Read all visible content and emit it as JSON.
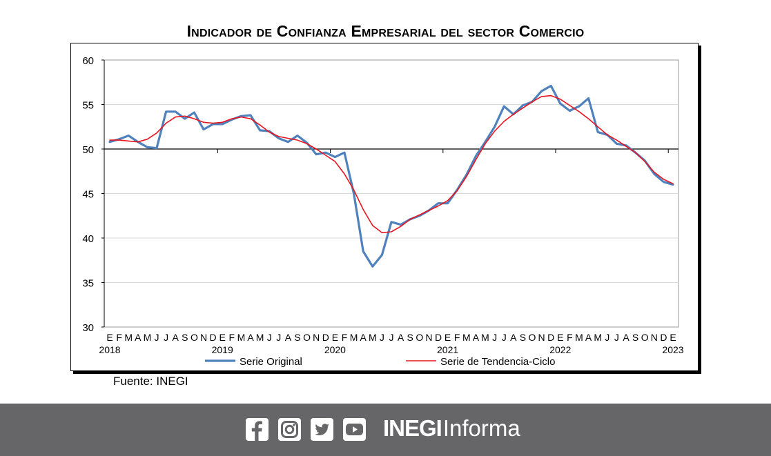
{
  "source": "Fuente: INEGI",
  "footer": {
    "brand_bold": "INEGI",
    "brand_light": "Informa",
    "social_icons": [
      "facebook-icon",
      "instagram-icon",
      "twitter-icon",
      "youtube-icon"
    ],
    "bar_color": "#666669"
  },
  "chart_data": {
    "type": "line",
    "title": "Indicador de Confianza Empresarial del sector Comercio",
    "ylim": [
      30,
      60
    ],
    "yticks": [
      30,
      35,
      40,
      45,
      50,
      55,
      60
    ],
    "reference_line": 50,
    "grid": "horizontal",
    "legend_position": "bottom",
    "month_labels": [
      "E",
      "F",
      "M",
      "A",
      "M",
      "J",
      "J",
      "A",
      "S",
      "O",
      "N",
      "D",
      "E",
      "F",
      "M",
      "A",
      "M",
      "J",
      "J",
      "A",
      "S",
      "O",
      "N",
      "D",
      "E",
      "F",
      "M",
      "A",
      "M",
      "J",
      "J",
      "A",
      "S",
      "O",
      "N",
      "D",
      "E",
      "F",
      "M",
      "A",
      "M",
      "J",
      "J",
      "A",
      "S",
      "O",
      "N",
      "D",
      "E",
      "F",
      "M",
      "A",
      "M",
      "J",
      "J",
      "A",
      "S",
      "O",
      "N",
      "D",
      "E"
    ],
    "year_labels": [
      {
        "index": 0,
        "label": "2018"
      },
      {
        "index": 12,
        "label": "2019"
      },
      {
        "index": 24,
        "label": "2020"
      },
      {
        "index": 36,
        "label": "2021"
      },
      {
        "index": 48,
        "label": "2022"
      },
      {
        "index": 60,
        "label": "2023"
      }
    ],
    "series": [
      {
        "name": "Serie Original",
        "color": "#4f81bd",
        "values": [
          50.8,
          51.1,
          51.5,
          50.8,
          50.2,
          50.1,
          54.2,
          54.2,
          53.4,
          54.1,
          52.2,
          52.8,
          52.8,
          53.3,
          53.7,
          53.8,
          52.1,
          52.0,
          51.2,
          50.8,
          51.5,
          50.7,
          49.4,
          49.6,
          49.1,
          49.6,
          45.0,
          38.5,
          36.8,
          38.1,
          41.8,
          41.5,
          42.1,
          42.5,
          43.1,
          43.9,
          43.9,
          45.4,
          47.1,
          49.2,
          50.8,
          52.5,
          54.8,
          53.9,
          54.9,
          55.3,
          56.5,
          57.1,
          55.1,
          54.3,
          54.8,
          55.7,
          51.9,
          51.6,
          50.6,
          50.4,
          49.6,
          48.7,
          47.2,
          46.3,
          46.0
        ]
      },
      {
        "name": "Serie de Tendencia-Ciclo",
        "color": "#e8141f",
        "values": [
          51.0,
          51.0,
          50.9,
          50.8,
          51.1,
          51.8,
          52.9,
          53.6,
          53.7,
          53.4,
          53.0,
          52.9,
          53.0,
          53.4,
          53.6,
          53.4,
          52.7,
          51.9,
          51.4,
          51.2,
          51.0,
          50.6,
          50.0,
          49.3,
          48.6,
          47.2,
          45.4,
          43.2,
          41.4,
          40.6,
          40.7,
          41.3,
          42.1,
          42.6,
          43.1,
          43.6,
          44.2,
          45.3,
          46.9,
          48.8,
          50.6,
          52.0,
          53.1,
          53.9,
          54.6,
          55.3,
          55.9,
          56.0,
          55.6,
          54.9,
          54.2,
          53.4,
          52.5,
          51.6,
          51.0,
          50.3,
          49.6,
          48.6,
          47.4,
          46.6,
          46.1
        ]
      }
    ]
  }
}
